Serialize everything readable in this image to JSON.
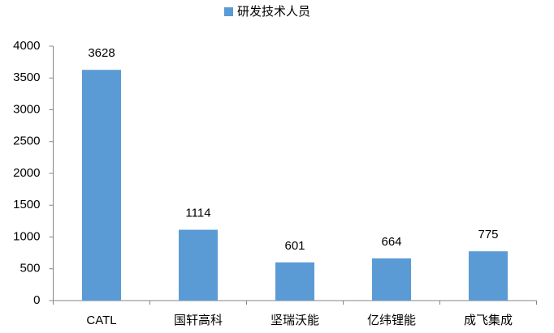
{
  "chart_data": {
    "type": "bar",
    "categories": [
      "CATL",
      "国轩高科",
      "坚瑞沃能",
      "亿纬锂能",
      "成飞集成"
    ],
    "series": [
      {
        "name": "研发技术人员",
        "color": "#5b9bd5",
        "values": [
          3628,
          1114,
          601,
          664,
          775
        ]
      }
    ],
    "ylim": [
      0,
      4000
    ],
    "yticks": [
      0,
      500,
      1000,
      1500,
      2000,
      2500,
      3000,
      3500,
      4000
    ],
    "grid": false,
    "legend": "top"
  }
}
